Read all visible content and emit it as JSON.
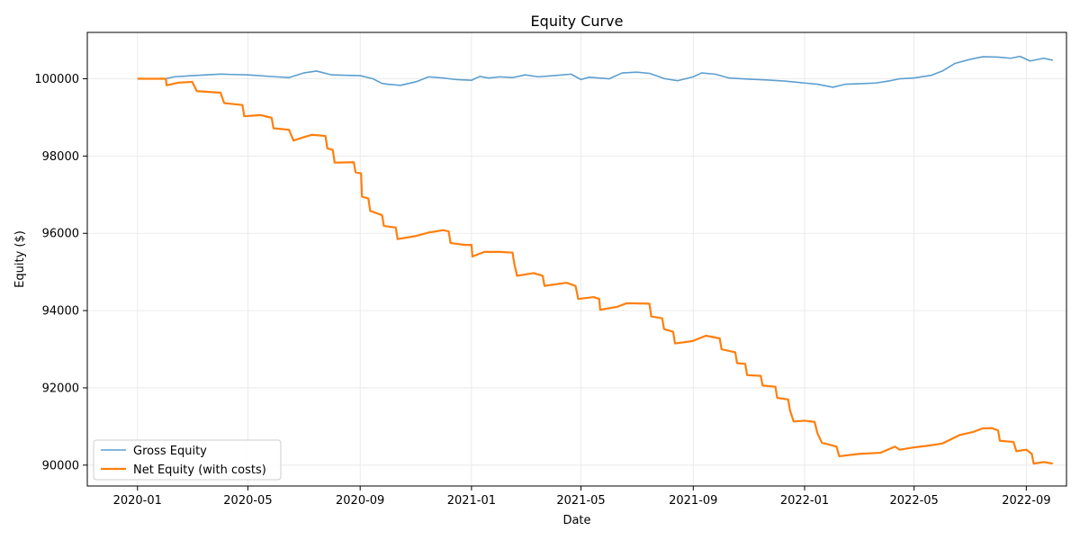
{
  "chart_data": {
    "type": "line",
    "title": "Equity Curve",
    "xlabel": "Date",
    "ylabel": "Equity ($)",
    "xlim": [
      "2019-11-07",
      "2022-10-15"
    ],
    "ylim": [
      89460,
      101200
    ],
    "x_ticks": [
      "2020-01",
      "2020-05",
      "2020-09",
      "2021-01",
      "2021-05",
      "2021-09",
      "2022-01",
      "2022-05",
      "2022-09"
    ],
    "y_ticks": [
      90000,
      92000,
      94000,
      96000,
      98000,
      100000
    ],
    "grid": true,
    "legend_position": "lower-left",
    "series": [
      {
        "name": "Gross Equity",
        "color": "#5c9fcf",
        "points": [
          [
            "2020-01-01",
            100000
          ],
          [
            "2020-02-01",
            100000
          ],
          [
            "2020-02-10",
            100050
          ],
          [
            "2020-03-01",
            100080
          ],
          [
            "2020-04-01",
            100120
          ],
          [
            "2020-05-01",
            100100
          ],
          [
            "2020-06-01",
            100050
          ],
          [
            "2020-06-15",
            100030
          ],
          [
            "2020-07-01",
            100150
          ],
          [
            "2020-07-15",
            100200
          ],
          [
            "2020-08-01",
            100100
          ],
          [
            "2020-09-01",
            100080
          ],
          [
            "2020-09-15",
            100000
          ],
          [
            "2020-09-25",
            99880
          ],
          [
            "2020-10-01",
            99860
          ],
          [
            "2020-10-15",
            99830
          ],
          [
            "2020-11-01",
            99920
          ],
          [
            "2020-11-15",
            100050
          ],
          [
            "2020-12-01",
            100020
          ],
          [
            "2020-12-15",
            99980
          ],
          [
            "2021-01-01",
            99960
          ],
          [
            "2021-01-10",
            100060
          ],
          [
            "2021-01-20",
            100020
          ],
          [
            "2021-02-01",
            100050
          ],
          [
            "2021-02-15",
            100030
          ],
          [
            "2021-03-01",
            100100
          ],
          [
            "2021-03-15",
            100050
          ],
          [
            "2021-04-01",
            100080
          ],
          [
            "2021-04-20",
            100120
          ],
          [
            "2021-05-01",
            99980
          ],
          [
            "2021-05-10",
            100040
          ],
          [
            "2021-06-01",
            100000
          ],
          [
            "2021-06-15",
            100150
          ],
          [
            "2021-07-01",
            100170
          ],
          [
            "2021-07-15",
            100140
          ],
          [
            "2021-08-01",
            100000
          ],
          [
            "2021-08-15",
            99950
          ],
          [
            "2021-09-01",
            100050
          ],
          [
            "2021-09-10",
            100150
          ],
          [
            "2021-09-25",
            100120
          ],
          [
            "2021-10-10",
            100020
          ],
          [
            "2021-11-01",
            99990
          ],
          [
            "2021-11-20",
            99970
          ],
          [
            "2021-12-10",
            99940
          ],
          [
            "2022-01-01",
            99890
          ],
          [
            "2022-01-15",
            99860
          ],
          [
            "2022-02-01",
            99780
          ],
          [
            "2022-02-15",
            99860
          ],
          [
            "2022-03-01",
            99870
          ],
          [
            "2022-03-20",
            99890
          ],
          [
            "2022-04-05",
            99950
          ],
          [
            "2022-04-15",
            100000
          ],
          [
            "2022-05-01",
            100020
          ],
          [
            "2022-05-20",
            100090
          ],
          [
            "2022-06-01",
            100200
          ],
          [
            "2022-06-15",
            100400
          ],
          [
            "2022-07-01",
            100500
          ],
          [
            "2022-07-15",
            100570
          ],
          [
            "2022-08-01",
            100560
          ],
          [
            "2022-08-15",
            100530
          ],
          [
            "2022-08-25",
            100580
          ],
          [
            "2022-09-05",
            100460
          ],
          [
            "2022-09-20",
            100530
          ],
          [
            "2022-09-30",
            100480
          ]
        ]
      },
      {
        "name": "Net Equity (with costs)",
        "color": "#ff7f0e",
        "points": [
          [
            "2020-01-01",
            100000
          ],
          [
            "2020-02-01",
            100000
          ],
          [
            "2020-02-02",
            99830
          ],
          [
            "2020-02-15",
            99900
          ],
          [
            "2020-03-01",
            99920
          ],
          [
            "2020-03-06",
            99680
          ],
          [
            "2020-04-01",
            99640
          ],
          [
            "2020-04-05",
            99370
          ],
          [
            "2020-04-25",
            99320
          ],
          [
            "2020-04-27",
            99030
          ],
          [
            "2020-05-15",
            99060
          ],
          [
            "2020-05-27",
            98990
          ],
          [
            "2020-05-29",
            98720
          ],
          [
            "2020-06-15",
            98680
          ],
          [
            "2020-06-20",
            98400
          ],
          [
            "2020-06-30",
            98480
          ],
          [
            "2020-07-10",
            98550
          ],
          [
            "2020-07-25",
            98520
          ],
          [
            "2020-07-27",
            98200
          ],
          [
            "2020-08-02",
            98160
          ],
          [
            "2020-08-04",
            97830
          ],
          [
            "2020-08-25",
            97840
          ],
          [
            "2020-08-27",
            97580
          ],
          [
            "2020-09-02",
            97550
          ],
          [
            "2020-09-03",
            96950
          ],
          [
            "2020-09-10",
            96900
          ],
          [
            "2020-09-12",
            96580
          ],
          [
            "2020-09-25",
            96470
          ],
          [
            "2020-09-27",
            96190
          ],
          [
            "2020-10-10",
            96150
          ],
          [
            "2020-10-12",
            95850
          ],
          [
            "2020-11-01",
            95930
          ],
          [
            "2020-11-15",
            96020
          ],
          [
            "2020-12-01",
            96080
          ],
          [
            "2020-12-07",
            96050
          ],
          [
            "2020-12-09",
            95750
          ],
          [
            "2020-12-25",
            95700
          ],
          [
            "2021-01-01",
            95700
          ],
          [
            "2021-01-02",
            95400
          ],
          [
            "2021-01-15",
            95520
          ],
          [
            "2021-02-01",
            95520
          ],
          [
            "2021-02-15",
            95500
          ],
          [
            "2021-02-17",
            95200
          ],
          [
            "2021-02-20",
            94900
          ],
          [
            "2021-03-10",
            94970
          ],
          [
            "2021-03-20",
            94900
          ],
          [
            "2021-03-22",
            94640
          ],
          [
            "2021-04-15",
            94720
          ],
          [
            "2021-04-25",
            94640
          ],
          [
            "2021-04-28",
            94300
          ],
          [
            "2021-05-15",
            94350
          ],
          [
            "2021-05-21",
            94300
          ],
          [
            "2021-05-22",
            94020
          ],
          [
            "2021-06-10",
            94100
          ],
          [
            "2021-06-20",
            94190
          ],
          [
            "2021-07-15",
            94180
          ],
          [
            "2021-07-17",
            93850
          ],
          [
            "2021-07-29",
            93800
          ],
          [
            "2021-07-31",
            93520
          ],
          [
            "2021-08-10",
            93450
          ],
          [
            "2021-08-12",
            93150
          ],
          [
            "2021-08-31",
            93210
          ],
          [
            "2021-09-15",
            93350
          ],
          [
            "2021-09-30",
            93280
          ],
          [
            "2021-10-02",
            93000
          ],
          [
            "2021-10-17",
            92920
          ],
          [
            "2021-10-19",
            92640
          ],
          [
            "2021-10-28",
            92620
          ],
          [
            "2021-10-30",
            92330
          ],
          [
            "2021-11-14",
            92310
          ],
          [
            "2021-11-16",
            92060
          ],
          [
            "2021-11-30",
            92030
          ],
          [
            "2021-12-02",
            91740
          ],
          [
            "2021-12-14",
            91700
          ],
          [
            "2021-12-16",
            91420
          ],
          [
            "2021-12-20",
            91130
          ],
          [
            "2022-01-01",
            91150
          ],
          [
            "2022-01-12",
            91120
          ],
          [
            "2022-01-15",
            90830
          ],
          [
            "2022-01-20",
            90580
          ],
          [
            "2022-02-05",
            90480
          ],
          [
            "2022-02-08",
            90230
          ],
          [
            "2022-03-01",
            90290
          ],
          [
            "2022-03-25",
            90320
          ],
          [
            "2022-04-10",
            90480
          ],
          [
            "2022-04-15",
            90400
          ],
          [
            "2022-05-01",
            90460
          ],
          [
            "2022-05-15",
            90500
          ],
          [
            "2022-06-01",
            90560
          ],
          [
            "2022-06-20",
            90780
          ],
          [
            "2022-07-05",
            90860
          ],
          [
            "2022-07-15",
            90950
          ],
          [
            "2022-07-25",
            90960
          ],
          [
            "2022-08-01",
            90900
          ],
          [
            "2022-08-03",
            90630
          ],
          [
            "2022-08-18",
            90600
          ],
          [
            "2022-08-21",
            90360
          ],
          [
            "2022-09-01",
            90400
          ],
          [
            "2022-09-07",
            90290
          ],
          [
            "2022-09-09",
            90040
          ],
          [
            "2022-09-20",
            90080
          ],
          [
            "2022-09-30",
            90040
          ]
        ]
      }
    ]
  }
}
